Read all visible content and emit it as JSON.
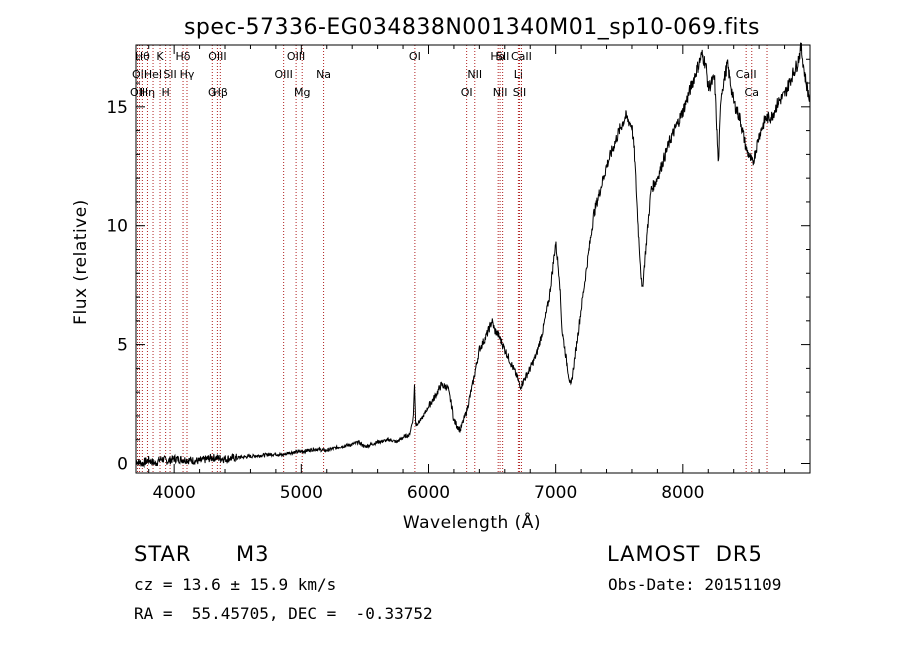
{
  "chart_data": {
    "type": "line",
    "title": "spec-57336-EG034838N001340M01_sp10-069.fits",
    "xlabel": "Wavelength (Å)",
    "ylabel": "Flux (relative)",
    "xlim": [
      3700,
      9000
    ],
    "ylim": [
      -0.4,
      17.6
    ],
    "xticks": [
      4000,
      5000,
      6000,
      7000,
      8000
    ],
    "yticks": [
      0,
      5,
      10,
      15
    ],
    "series": [
      {
        "x": [
          3700,
          3750,
          3800,
          3850,
          3900,
          3950,
          4000,
          4100,
          4200,
          4300,
          4400,
          4500,
          4600,
          4700,
          4800,
          4850,
          4900,
          5000,
          5100,
          5200,
          5300,
          5400,
          5450,
          5500,
          5600,
          5700,
          5750,
          5800,
          5850,
          5880,
          5890,
          5900,
          5950,
          6000,
          6050,
          6100,
          6150,
          6180,
          6200,
          6250,
          6300,
          6350,
          6400,
          6450,
          6500,
          6520,
          6550,
          6600,
          6650,
          6700,
          6720,
          6750,
          6800,
          6850,
          6900,
          6950,
          7000,
          7030,
          7050,
          7100,
          7120,
          7150,
          7200,
          7300,
          7400,
          7500,
          7550,
          7600,
          7620,
          7650,
          7680,
          7700,
          7750,
          7800,
          7900,
          8000,
          8100,
          8150,
          8180,
          8200,
          8250,
          8280,
          8300,
          8350,
          8400,
          8450,
          8500,
          8550,
          8600,
          8650,
          8700,
          8750,
          8800,
          8850,
          8900,
          8930,
          8960,
          9000
        ],
        "y": [
          0.1,
          0.0,
          0.15,
          0.0,
          0.2,
          0.1,
          0.2,
          0.15,
          0.1,
          0.25,
          0.2,
          0.25,
          0.3,
          0.35,
          0.4,
          0.35,
          0.45,
          0.5,
          0.6,
          0.55,
          0.7,
          0.8,
          0.9,
          0.7,
          0.9,
          1.0,
          0.9,
          1.1,
          1.2,
          1.9,
          3.3,
          1.6,
          1.9,
          2.4,
          2.8,
          3.3,
          3.2,
          2.5,
          1.8,
          1.4,
          2.2,
          3.4,
          4.8,
          5.3,
          6.0,
          5.6,
          5.4,
          4.8,
          4.2,
          3.6,
          3.2,
          3.5,
          4.0,
          4.6,
          5.6,
          7.0,
          9.3,
          7.8,
          5.6,
          3.8,
          3.2,
          4.4,
          6.5,
          10.5,
          12.5,
          14.0,
          14.6,
          14.2,
          13.0,
          9.8,
          7.2,
          8.5,
          11.5,
          12.0,
          13.6,
          14.8,
          16.4,
          17.2,
          16.8,
          15.8,
          16.2,
          12.5,
          15.5,
          16.8,
          15.2,
          14.5,
          13.2,
          12.6,
          13.8,
          14.5,
          14.6,
          15.2,
          15.5,
          16.2,
          16.8,
          17.5,
          16.3,
          15.2
        ]
      }
    ],
    "lines": [
      {
        "x": 3712,
        "label": "OII",
        "row": 2
      },
      {
        "x": 3728,
        "label": "OII",
        "row": 1
      },
      {
        "x": 3750,
        "label": "Hθ",
        "row": 0
      },
      {
        "x": 3790,
        "label": "Hη",
        "row": 2
      },
      {
        "x": 3834,
        "label": "HeI",
        "row": 1
      },
      {
        "x": 3889,
        "label": "K",
        "row": 0
      },
      {
        "x": 3933,
        "label": "H",
        "row": 2
      },
      {
        "x": 3968,
        "label": "SII",
        "row": 1
      },
      {
        "x": 4070,
        "label": "Hδ",
        "row": 0
      },
      {
        "x": 4101,
        "label": "Hγ",
        "row": 1
      },
      {
        "x": 4300,
        "label": "G",
        "row": 2
      },
      {
        "x": 4340,
        "label": "OIII",
        "row": 0
      },
      {
        "x": 4363,
        "label": "Hβ",
        "row": 2
      },
      {
        "x": 4861,
        "label": "OIII",
        "row": 1
      },
      {
        "x": 4959,
        "label": "OIII",
        "row": 0
      },
      {
        "x": 5007,
        "label": "Mg",
        "row": 2
      },
      {
        "x": 5175,
        "label": "Na",
        "row": 1
      },
      {
        "x": 5893,
        "label": "OI",
        "row": 0
      },
      {
        "x": 6300,
        "label": "OI",
        "row": 2
      },
      {
        "x": 6364,
        "label": "NII",
        "row": 1
      },
      {
        "x": 6548,
        "label": "Hα",
        "row": 0
      },
      {
        "x": 6563,
        "label": "NII",
        "row": 2
      },
      {
        "x": 6583,
        "label": "SII",
        "row": 0
      },
      {
        "x": 6707,
        "label": "Li",
        "row": 1
      },
      {
        "x": 6716,
        "label": "SII",
        "row": 2
      },
      {
        "x": 6731,
        "label": "CaII",
        "row": 0
      },
      {
        "x": 8498,
        "label": "CaII",
        "row": 1
      },
      {
        "x": 8542,
        "label": "Ca",
        "row": 2
      },
      {
        "x": 8662,
        "label": "",
        "row": 2
      }
    ]
  },
  "info": {
    "object_type": "STAR",
    "subclass": "M3",
    "survey": "LAMOST  DR5",
    "cz": "cz = 13.6 ± 15.9 km/s",
    "obs_date": "Obs-Date: 20151109",
    "radec": "RA =  55.45705, DEC =  -0.33752"
  }
}
